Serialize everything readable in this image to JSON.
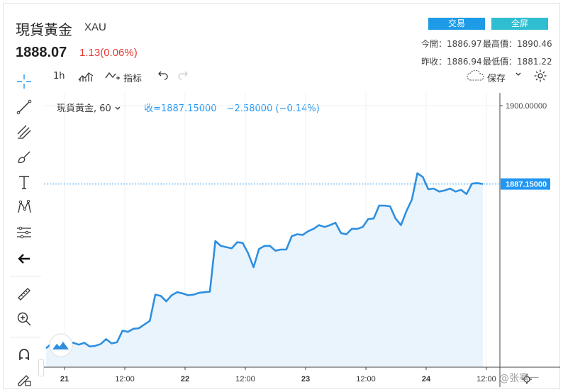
{
  "header": {
    "title": "現貨黃金",
    "symbol": "XAU",
    "price": "1888.07",
    "change": "1.13(0.06%)",
    "trade_label": "交易",
    "fullscreen_label": "全屏",
    "open_label": "今開：",
    "open_value": "1886.97",
    "high_label": "最高價：",
    "high_value": "1890.46",
    "prev_close_label": "昨收：",
    "prev_close_value": "1886.94",
    "low_label": "最低價：",
    "low_value": "1881.22"
  },
  "toolbar": {
    "interval": "1h",
    "indicators_label": "指标",
    "save_label": "保存"
  },
  "legend": {
    "symbol_interval": "現貨黃金, 60",
    "close_text": "收=1887.15000",
    "change_text": "−2.58000 (−0.14%)"
  },
  "colors": {
    "line": "#2e8fe0",
    "fill": "#eaf4fc",
    "up": "#e53935",
    "trade_button": "#1e9be6",
    "fullscreen_button": "#2ebdd1",
    "price_label_bg": "#2196f3"
  },
  "chart_data": {
    "type": "area",
    "series": [
      {
        "values": [
          1860.2,
          1861.0,
          1859.8,
          1860.9,
          1861.2,
          1861.1,
          1860.8,
          1861.1,
          1860.5,
          1860.6,
          1860.9,
          1861.7,
          1861.0,
          1861.2,
          1863.1,
          1862.9,
          1863.4,
          1863.5,
          1864.1,
          1864.7,
          1869.0,
          1868.8,
          1867.9,
          1868.9,
          1869.4,
          1869.2,
          1868.9,
          1869.0,
          1869.3,
          1869.4,
          1869.5,
          1877.8,
          1877.0,
          1876.8,
          1876.6,
          1877.6,
          1877.5,
          1875.8,
          1873.5,
          1876.5,
          1877.0,
          1877.0,
          1876.2,
          1876.4,
          1876.4,
          1878.6,
          1878.9,
          1878.8,
          1879.4,
          1879.8,
          1880.4,
          1880.1,
          1880.4,
          1880.8,
          1879.1,
          1878.9,
          1879.8,
          1879.8,
          1880.1,
          1881.4,
          1881.5,
          1883.6,
          1883.6,
          1883.5,
          1881.5,
          1880.4,
          1882.7,
          1884.6,
          1888.9,
          1888.3,
          1886.3,
          1886.4,
          1885.9,
          1886.1,
          1886.4,
          1885.9,
          1886.2,
          1885.5,
          1887.2,
          1887.3,
          1887.15
        ]
      }
    ],
    "x_ticks": [
      "21",
      "12:00",
      "22",
      "12:00",
      "23",
      "12:00",
      "24",
      "12:00"
    ],
    "y_ticks": [
      "1900.00000"
    ],
    "last_price_label": "1887.15000",
    "ylim": [
      1857.1,
      1902.1
    ],
    "grid": true
  },
  "watermark": "@张骞一"
}
